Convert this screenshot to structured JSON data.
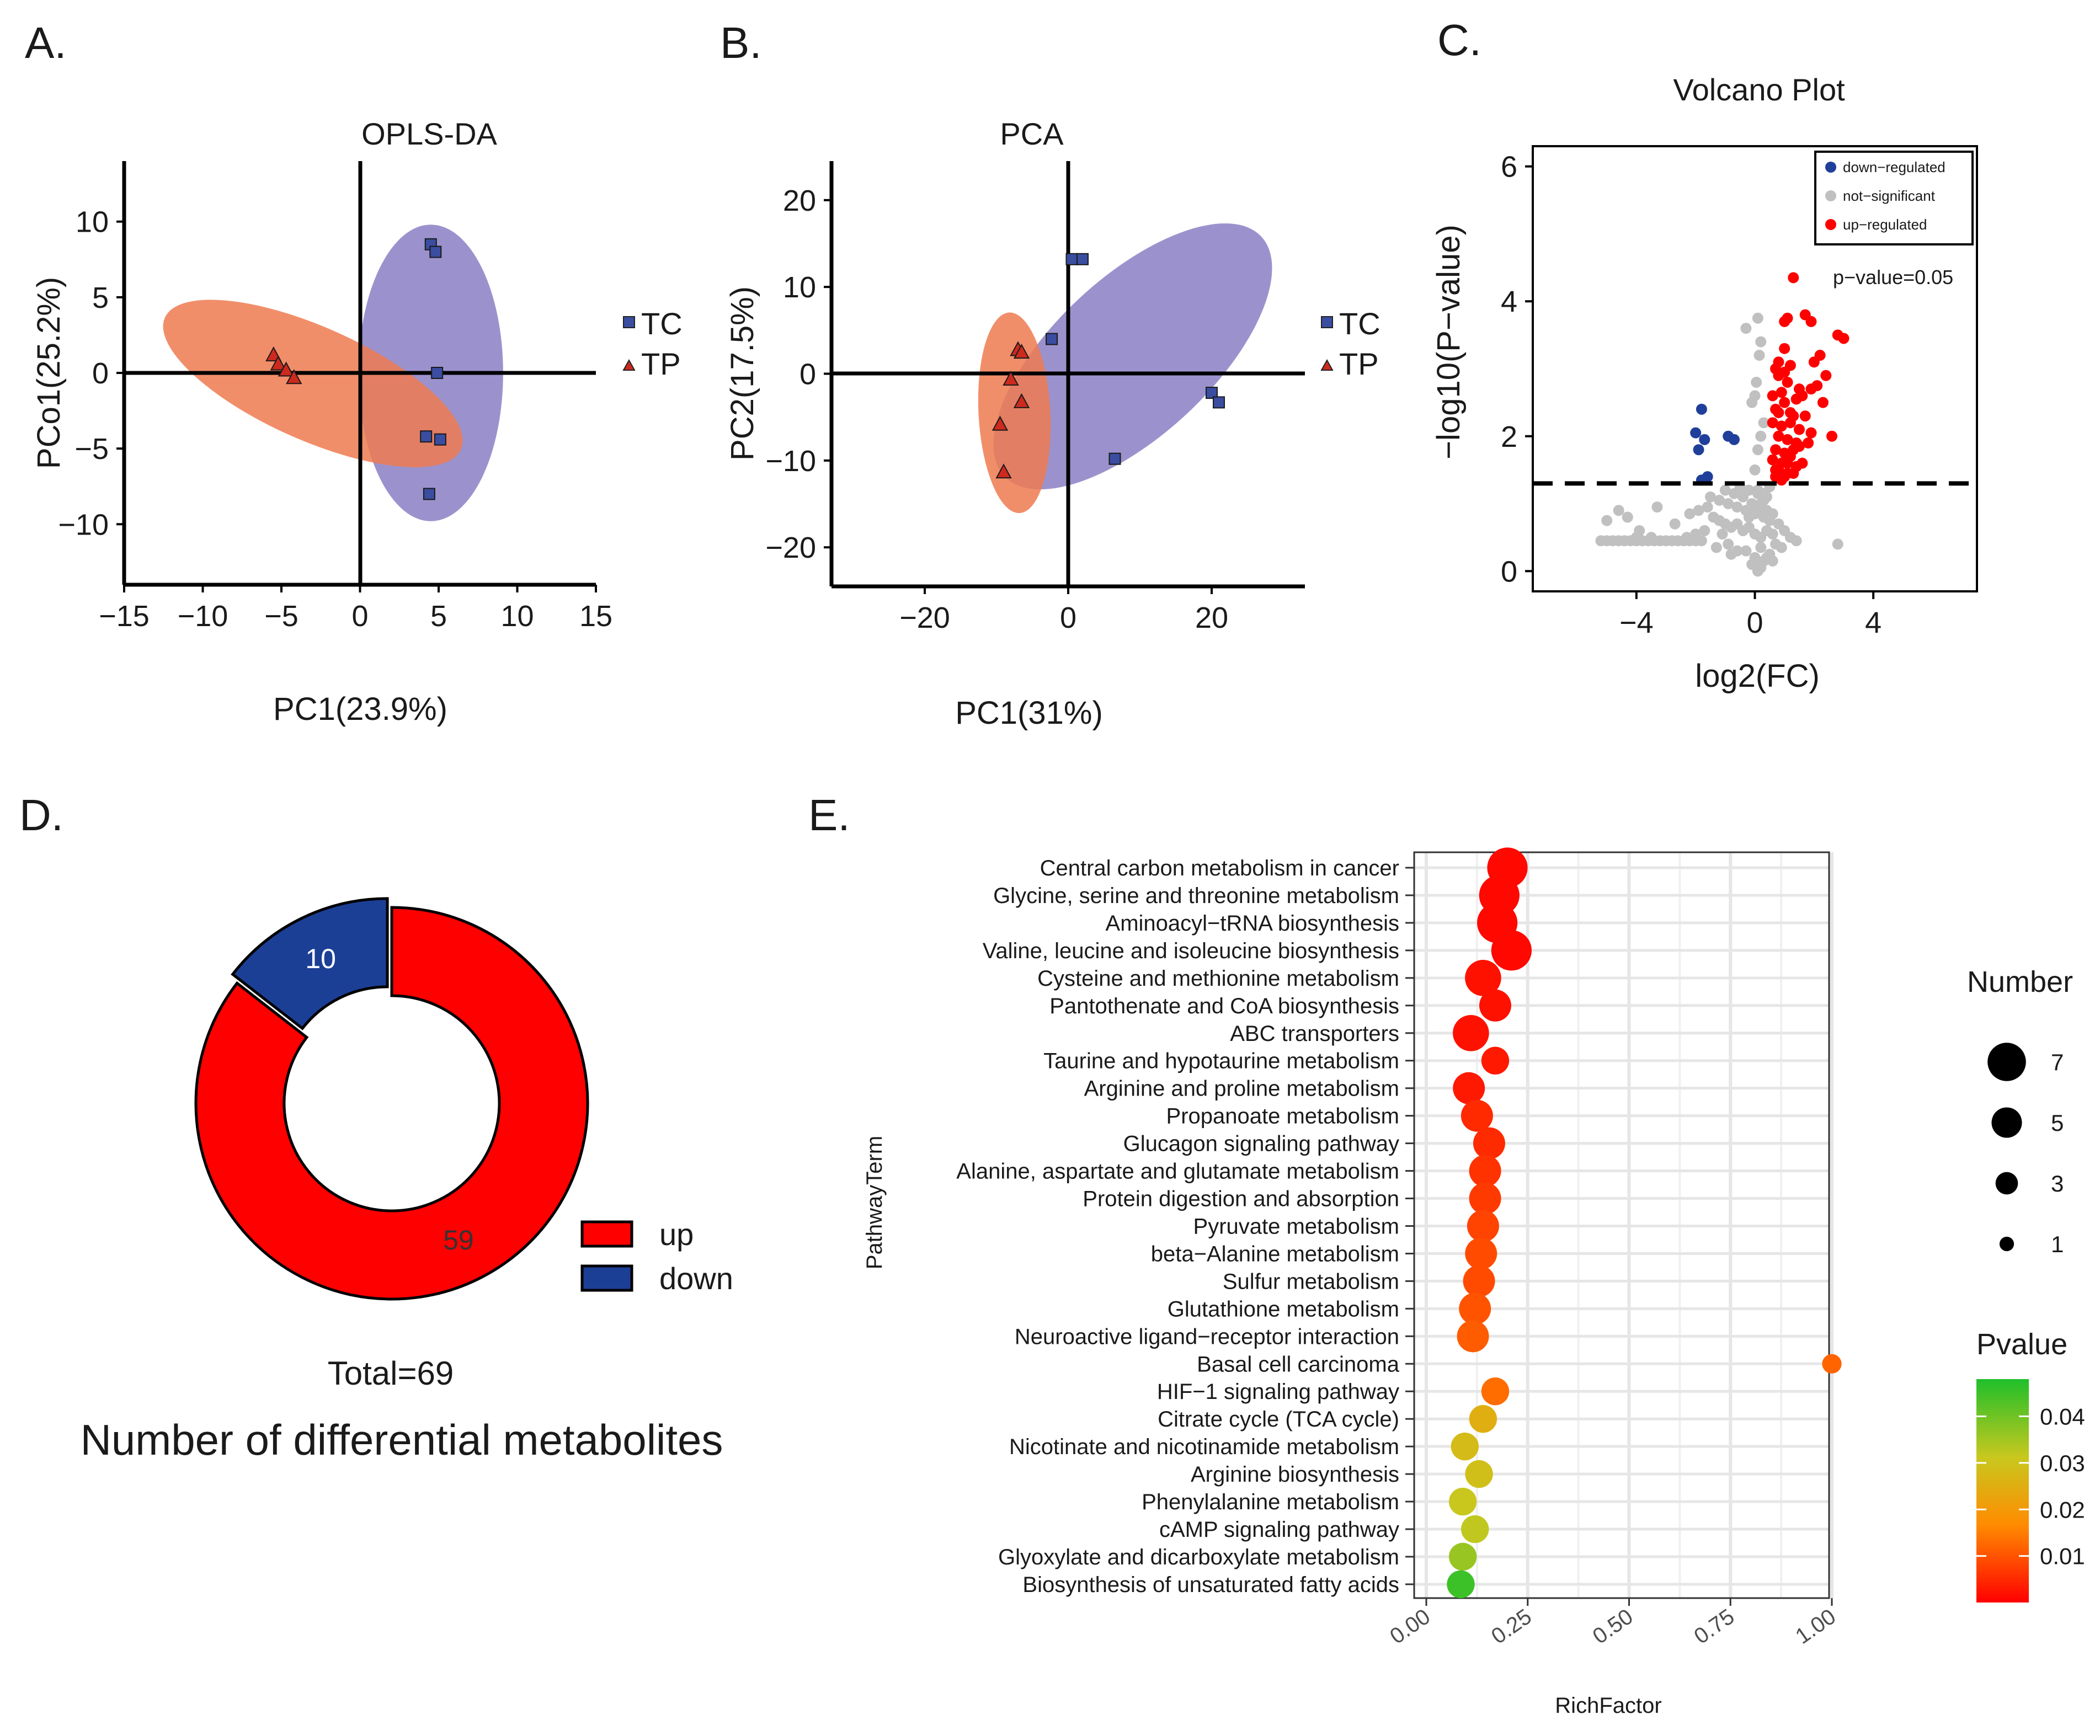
{
  "colors": {
    "tc_point": "#3a4da0",
    "tp_point": "#cc2a1e",
    "tc_ellipse": "#8a7fc4",
    "tp_ellipse": "#ee7a50",
    "volcano_down": "#1f3f9a",
    "volcano_ns": "#c0c0c0",
    "volcano_up": "#ff0000",
    "donut_up": "#ff0000",
    "donut_down": "#1c3f96"
  },
  "chart_data": [
    {
      "panel": "A.",
      "type": "scatter",
      "title": "OPLS-DA",
      "xlabel": "PC1(23.9%)",
      "ylabel": "PCo1(25.2%)",
      "xlim": [
        -15,
        15
      ],
      "ylim": [
        -14,
        14
      ],
      "xticks": [
        "−15",
        "−10",
        "−5",
        "0",
        "5",
        "10",
        "15"
      ],
      "xtick_values": [
        -15,
        -10,
        -5,
        0,
        5,
        10,
        15
      ],
      "yticks": [
        "10",
        "5",
        "0",
        "−5",
        "−10"
      ],
      "ytick_values": [
        10,
        5,
        0,
        -5,
        -10
      ],
      "legend": [
        "TC",
        "TP"
      ],
      "series": [
        {
          "name": "TC",
          "marker": "square",
          "x": [
            4.5,
            4.8,
            4.9,
            4.2,
            5.1,
            4.4
          ],
          "y": [
            8.5,
            8.0,
            0.0,
            -4.2,
            -4.4,
            -8.0
          ]
        },
        {
          "name": "TP",
          "marker": "triangle",
          "x": [
            -5.5,
            -5.2,
            -4.7,
            -4.2
          ],
          "y": [
            1.2,
            0.6,
            0.2,
            -0.3
          ]
        }
      ],
      "ellipses": [
        {
          "group": "TC",
          "cx": 4.5,
          "cy": 0.0,
          "rx": 4.6,
          "ry": 9.8,
          "angle": 0
        },
        {
          "group": "TP",
          "cx": -3.0,
          "cy": -0.7,
          "rx": 10.3,
          "ry": 3.6,
          "angle": 24
        }
      ]
    },
    {
      "panel": "B.",
      "type": "scatter",
      "title": "PCA",
      "xlabel": "PC1(31%)",
      "ylabel": "PC2(17.5%)",
      "xlim": [
        -33,
        33
      ],
      "ylim": [
        -24.5,
        24.5
      ],
      "xticks": [
        "−20",
        "0",
        "20"
      ],
      "xtick_values": [
        -20,
        0,
        20
      ],
      "yticks": [
        "20",
        "10",
        "0",
        "−10",
        "−20"
      ],
      "ytick_values": [
        20,
        10,
        0,
        -10,
        -20
      ],
      "legend": [
        "TC",
        "TP"
      ],
      "series": [
        {
          "name": "TC",
          "marker": "square",
          "x": [
            0.5,
            2.0,
            -2.3,
            6.5,
            20.0,
            21.0
          ],
          "y": [
            13.2,
            13.2,
            4.0,
            -9.8,
            -2.2,
            -3.3
          ]
        },
        {
          "name": "TP",
          "marker": "triangle",
          "x": [
            -7.0,
            -6.5,
            -8.0,
            -6.5,
            -9.5,
            -9.0
          ],
          "y": [
            2.8,
            2.5,
            -0.6,
            -3.2,
            -5.8,
            -11.3
          ]
        }
      ],
      "ellipses": [
        {
          "group": "TC",
          "cx": 9.0,
          "cy": 2.0,
          "rx": 24.5,
          "ry": 11.0,
          "angle": -43
        },
        {
          "group": "TP",
          "cx": -7.5,
          "cy": -4.5,
          "rx": 5.0,
          "ry": 14.0,
          "angle": -3
        }
      ]
    },
    {
      "panel": "C.",
      "type": "scatter",
      "title": "Volcano Plot",
      "xlabel": "log2(FC)",
      "ylabel": "−log10(P−value)",
      "xlim": [
        -7.5,
        7.5
      ],
      "ylim": [
        -0.3,
        6.3
      ],
      "xticks": [
        "−4",
        "0",
        "4"
      ],
      "xtick_values": [
        -4,
        0,
        4
      ],
      "yticks": [
        "6",
        "4",
        "2",
        "0"
      ],
      "ytick_values": [
        6,
        4,
        2,
        0
      ],
      "threshold_y": 1.3,
      "threshold_label": "p−value=0.05",
      "legend": [
        "down−regulated",
        "not−significant",
        "up−regulated"
      ],
      "series": [
        {
          "name": "down−regulated",
          "x": [
            -1.8,
            -2.0,
            -1.7,
            -1.9,
            -0.9,
            -0.7,
            -1.6,
            -1.8
          ],
          "y": [
            2.4,
            2.05,
            1.95,
            1.8,
            2.0,
            1.95,
            1.4,
            1.35
          ]
        },
        {
          "name": "up−regulated",
          "x": [
            1.3,
            1.0,
            0.8,
            1.1,
            1.7,
            1.9,
            2.0,
            2.2,
            2.8,
            3.0,
            0.7,
            0.8,
            1.0,
            1.2,
            1.5,
            0.6,
            0.9,
            1.1,
            1.4,
            1.6,
            2.1,
            2.4,
            0.7,
            0.8,
            1.0,
            1.3,
            1.7,
            2.3,
            0.6,
            0.9,
            1.2,
            1.5,
            2.6,
            0.8,
            1.1,
            1.4,
            1.9,
            0.7,
            1.0,
            1.3,
            1.8,
            0.6,
            0.9,
            1.2,
            1.6,
            0.8,
            1.1,
            1.4,
            0.7,
            1.0,
            1.3,
            0.9,
            1.1,
            0.7,
            1.2,
            1.9,
            0.8,
            1.5,
            1.0
          ],
          "y": [
            4.35,
            3.7,
            3.1,
            3.75,
            3.8,
            3.7,
            3.1,
            3.2,
            3.5,
            3.45,
            3.0,
            2.9,
            2.95,
            3.05,
            2.7,
            2.6,
            2.65,
            2.8,
            2.55,
            2.6,
            2.75,
            2.9,
            2.4,
            2.35,
            2.5,
            2.3,
            2.3,
            2.5,
            2.2,
            2.15,
            2.2,
            2.1,
            2.0,
            2.0,
            1.95,
            1.9,
            2.05,
            1.8,
            1.75,
            1.8,
            1.9,
            1.65,
            1.6,
            1.7,
            1.6,
            1.5,
            1.45,
            1.55,
            1.4,
            1.4,
            1.45,
            1.35,
            1.6,
            1.5,
            2.35,
            2.7,
            2.9,
            1.85,
            3.3
          ]
        },
        {
          "name": "not−significant",
          "x": [
            -5.2,
            -5.0,
            -4.8,
            -4.6,
            -4.4,
            -4.2,
            -4.0,
            -3.8,
            -3.6,
            -3.4,
            -3.2,
            -3.0,
            -2.8,
            -2.6,
            -2.4,
            -2.2,
            -2.0,
            -1.8,
            -5.0,
            -4.6,
            -4.3,
            -3.9,
            -3.3,
            -2.7,
            -2.2,
            -1.9,
            -1.6,
            -1.4,
            -1.2,
            -1.0,
            -0.8,
            -0.6,
            -0.4,
            -0.2,
            0.0,
            0.2,
            0.4,
            0.6,
            -1.5,
            -1.2,
            -0.9,
            -0.6,
            -0.3,
            0.0,
            0.3,
            0.5,
            -1.0,
            -0.7,
            -0.4,
            -0.1,
            0.2,
            0.4,
            -0.5,
            -0.2,
            0.1,
            0.3,
            -0.3,
            0.0,
            0.2,
            -0.1,
            0.1,
            0.3,
            0.5,
            0.7,
            0.9,
            -0.6,
            -0.8,
            -1.1,
            0.5,
            0.2,
            0.0,
            0.1,
            0.3,
            0.4,
            -0.2,
            -0.4,
            0.6,
            0.8,
            1.0,
            1.2,
            1.4,
            2.8,
            0.0,
            0.1,
            0.2,
            0.3,
            -0.1,
            0.05,
            0.15,
            -0.3,
            -2.3,
            -2.0,
            -1.7,
            -3.5,
            -4.0,
            0.4,
            0.6,
            -0.9,
            -1.3,
            0.1,
            0.2,
            0.0,
            0.1,
            0.2,
            0.0
          ],
          "y": [
            0.45,
            0.45,
            0.45,
            0.45,
            0.45,
            0.45,
            0.45,
            0.45,
            0.45,
            0.45,
            0.45,
            0.45,
            0.45,
            0.45,
            0.45,
            0.45,
            0.45,
            0.45,
            0.75,
            0.9,
            0.8,
            0.6,
            0.95,
            0.7,
            0.85,
            0.9,
            0.95,
            0.8,
            0.75,
            0.7,
            0.65,
            0.7,
            0.6,
            0.65,
            0.55,
            0.5,
            0.6,
            0.55,
            1.1,
            1.05,
            1.0,
            0.95,
            0.9,
            0.85,
            0.8,
            0.75,
            1.2,
            1.15,
            1.1,
            1.0,
            0.95,
            0.9,
            1.25,
            1.2,
            1.15,
            1.05,
            0.3,
            0.2,
            0.35,
            0.1,
            0.05,
            0.15,
            0.25,
            0.4,
            0.35,
            0.3,
            0.25,
            0.55,
            1.25,
            1.0,
            0.9,
            1.2,
            1.15,
            1.1,
            0.8,
            0.6,
            0.85,
            0.7,
            0.6,
            0.5,
            0.45,
            0.4,
            1.5,
            1.8,
            2.0,
            2.2,
            2.5,
            2.8,
            3.2,
            3.6,
            0.5,
            0.55,
            0.6,
            0.5,
            0.5,
            0.2,
            0.15,
            0.4,
            0.35,
            3.75,
            3.4,
            2.6,
            0.0,
            0.05,
            0.15
          ]
        }
      ]
    },
    {
      "panel": "D.",
      "type": "pie",
      "style": "donut",
      "categories": [
        "up",
        "down"
      ],
      "values": [
        59,
        10
      ],
      "total_label": "Total=69",
      "title": "Number of differential metabolites"
    },
    {
      "panel": "E.",
      "type": "scatter",
      "style": "bubble",
      "xlabel": "RichFactor",
      "ylabel": "PathwayTerm",
      "xlim": [
        0,
        1.04
      ],
      "xticks": [
        "0.00",
        "0.25",
        "0.50",
        "0.75",
        "1.00"
      ],
      "xtick_values": [
        0,
        0.25,
        0.5,
        0.75,
        1.0
      ],
      "size_legend_title": "Number",
      "size_legend": [
        7,
        5,
        3,
        1
      ],
      "color_legend_title": "Pvalue",
      "color_legend_ticks": [
        "0.04",
        "0.03",
        "0.02",
        "0.01"
      ],
      "color_legend_values": [
        0.04,
        0.03,
        0.02,
        0.01
      ],
      "color_range": [
        0.0,
        0.048
      ],
      "categories": [
        "Central carbon metabolism in cancer",
        "Glycine, serine and threonine metabolism",
        "Aminoacyl−tRNA biosynthesis",
        "Valine, leucine and isoleucine biosynthesis",
        "Cysteine and methionine metabolism",
        "Pantothenate and CoA biosynthesis",
        "ABC transporters",
        "Taurine and hypotaurine metabolism",
        "Arginine and proline metabolism",
        "Propanoate metabolism",
        "Glucagon signaling pathway",
        "Alanine, aspartate and glutamate metabolism",
        "Protein digestion and absorption",
        "Pyruvate metabolism",
        "beta−Alanine metabolism",
        "Sulfur metabolism",
        "Glutathione metabolism",
        "Neuroactive ligand−receptor interaction",
        "Basal cell carcinoma",
        "HIF−1 signaling pathway",
        "Citrate cycle (TCA cycle)",
        "Nicotinate and nicotinamide metabolism",
        "Arginine biosynthesis",
        "Phenylalanine metabolism",
        "cAMP signaling pathway",
        "Glyoxylate and dicarboxylate metabolism",
        "Biosynthesis of unsaturated fatty acids"
      ],
      "richfactor": [
        0.2,
        0.18,
        0.175,
        0.21,
        0.14,
        0.17,
        0.11,
        0.17,
        0.105,
        0.125,
        0.155,
        0.145,
        0.145,
        0.14,
        0.135,
        0.13,
        0.12,
        0.115,
        1.0,
        0.17,
        0.14,
        0.095,
        0.13,
        0.09,
        0.12,
        0.09,
        0.085
      ],
      "number": [
        7,
        7,
        7,
        7,
        6,
        5,
        6,
        4,
        5,
        5,
        5,
        5,
        5,
        5,
        5,
        5,
        5,
        5,
        2,
        4,
        4,
        4,
        4,
        4,
        4,
        4,
        4
      ],
      "pvalue": [
        0.001,
        0.001,
        0.001,
        0.001,
        0.002,
        0.002,
        0.002,
        0.003,
        0.003,
        0.005,
        0.005,
        0.006,
        0.007,
        0.008,
        0.009,
        0.009,
        0.01,
        0.011,
        0.012,
        0.013,
        0.025,
        0.028,
        0.029,
        0.031,
        0.032,
        0.036,
        0.045
      ]
    }
  ]
}
